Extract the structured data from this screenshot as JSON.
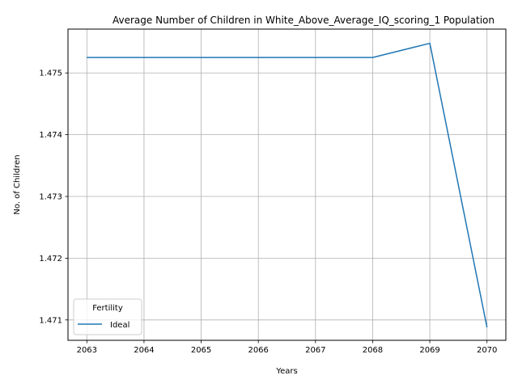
{
  "chart_data": {
    "type": "line",
    "title": "Average Number of Children in White_Above_Average_IQ_scoring_1 Population",
    "xlabel": "Years",
    "ylabel": "No. of Children",
    "x": [
      2063,
      2064,
      2065,
      2066,
      2067,
      2068,
      2069,
      2070
    ],
    "series": [
      {
        "name": "Ideal",
        "values": [
          1.47525,
          1.47525,
          1.47525,
          1.47525,
          1.47525,
          1.47525,
          1.47548,
          1.47088
        ],
        "color": "#1f77b4"
      }
    ],
    "xticks": [
      2063,
      2064,
      2065,
      2066,
      2067,
      2068,
      2069,
      2070
    ],
    "yticks": [
      1.471,
      1.472,
      1.473,
      1.474,
      1.475
    ],
    "ytick_labels": [
      "1.471",
      "1.472",
      "1.473",
      "1.474",
      "1.475"
    ],
    "xlim": [
      2062.67,
      2070.33
    ],
    "ylim": [
      1.47067,
      1.47571
    ],
    "grid": true,
    "legend": {
      "title": "Fertility",
      "placement": "lower-left"
    }
  }
}
